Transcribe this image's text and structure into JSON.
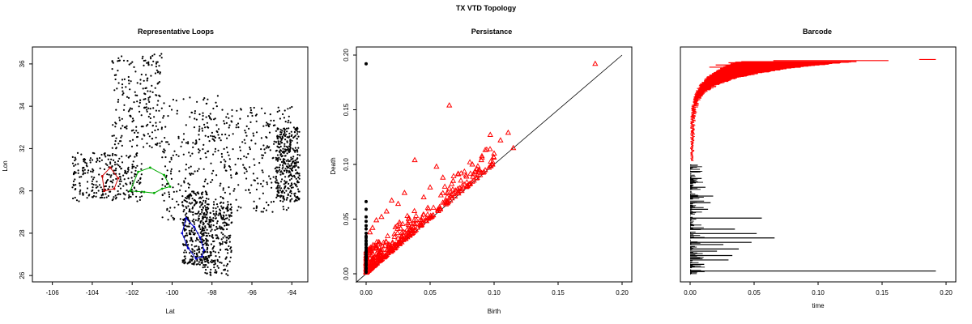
{
  "figure_title": "TX VTD Topology",
  "chart_data": [
    {
      "type": "scatter",
      "title": "Representative Loops",
      "xlabel": "Lat",
      "ylabel": "Lon",
      "xlim": [
        -107,
        -93.2
      ],
      "ylim": [
        25.7,
        36.8
      ],
      "xticks": [
        -106,
        -104,
        -102,
        -100,
        -98,
        -96,
        -94
      ],
      "yticks": [
        26,
        28,
        30,
        32,
        34,
        36
      ],
      "grid": false,
      "series": [
        {
          "role": "vtd-centroids",
          "color": "#000000",
          "regions": [
            {
              "x": [
                -103.0,
                -100.5
              ],
              "y": [
                32.0,
                36.5
              ]
            },
            {
              "x": [
                -100.5,
                -97.5
              ],
              "y": [
                28.5,
                34.5
              ]
            },
            {
              "x": [
                -97.5,
                -94.0
              ],
              "y": [
                29.0,
                34.0
              ]
            },
            {
              "x": [
                -98.5,
                -97.0
              ],
              "y": [
                26.0,
                29.5
              ]
            },
            {
              "x": [
                -105.0,
                -101.5
              ],
              "y": [
                29.5,
                31.8
              ]
            },
            {
              "x": [
                -99.5,
                -98.2
              ],
              "y": [
                26.5,
                30.0
              ]
            },
            {
              "x": [
                -94.8,
                -93.6
              ],
              "y": [
                29.5,
                33.0
              ]
            }
          ]
        },
        {
          "role": "loop",
          "color": "#cc0000",
          "x": [
            -103.4,
            -102.9,
            -102.7,
            -103.1,
            -103.5,
            -103.4
          ],
          "y": [
            30.0,
            30.1,
            30.6,
            31.1,
            30.7,
            30.0
          ]
        },
        {
          "role": "loop",
          "color": "#00aa00",
          "x": [
            -102.1,
            -101.4,
            -100.9,
            -100.5,
            -100.1,
            -100.4,
            -101.1,
            -101.7,
            -102.1
          ],
          "y": [
            30.0,
            29.95,
            29.9,
            30.1,
            30.2,
            30.75,
            31.1,
            30.9,
            30.0
          ]
        },
        {
          "role": "loop",
          "color": "#0000cc",
          "x": [
            -99.3,
            -98.9,
            -98.6,
            -98.4,
            -98.5,
            -98.8,
            -99.2,
            -99.5,
            -99.3
          ],
          "y": [
            28.7,
            28.3,
            27.8,
            27.2,
            26.9,
            26.8,
            27.3,
            28.0,
            28.7
          ]
        }
      ]
    },
    {
      "type": "scatter",
      "title": "Persistance",
      "xlabel": "Birth",
      "ylabel": "Death",
      "xlim": [
        0,
        0.2
      ],
      "ylim": [
        0,
        0.2
      ],
      "xticks": [
        0.0,
        0.05,
        0.1,
        0.15,
        0.2
      ],
      "xtick_labels": [
        "0.00",
        "0.05",
        "0.10",
        "0.15",
        "0.20"
      ],
      "yticks": [
        0.0,
        0.05,
        0.1,
        0.15,
        0.2
      ],
      "ytick_labels": [
        "0.00",
        "0.05",
        "0.10",
        "0.15",
        "0.20"
      ],
      "diagonal": true,
      "series": [
        {
          "role": "dimension-0",
          "marker": "circle",
          "color": "#000000",
          "x": [
            0,
            0,
            0,
            0,
            0,
            0,
            0,
            0,
            0,
            0,
            0,
            0,
            0,
            0,
            0,
            0,
            0,
            0
          ],
          "y": [
            0.192,
            0.066,
            0.059,
            0.052,
            0.048,
            0.044,
            0.041,
            0.037,
            0.034,
            0.03,
            0.027,
            0.024,
            0.02,
            0.016,
            0.012,
            0.008,
            0.005,
            0.002
          ]
        },
        {
          "role": "dimension-1",
          "marker": "triangle",
          "color": "#ff0000",
          "x": [
            0.179,
            0.065,
            0.097,
            0.111,
            0.115,
            0.1,
            0.105,
            0.038,
            0.055,
            0.072,
            0.083,
            0.088,
            0.09,
            0.06,
            0.05,
            0.03,
            0.025,
            0.02,
            0.016,
            0.012,
            0.008,
            0.005,
            0.003,
            0.045,
            0.068,
            0.078
          ],
          "y": [
            0.192,
            0.154,
            0.127,
            0.129,
            0.115,
            0.11,
            0.122,
            0.104,
            0.098,
            0.091,
            0.1,
            0.095,
            0.104,
            0.088,
            0.079,
            0.074,
            0.064,
            0.067,
            0.057,
            0.052,
            0.049,
            0.042,
            0.038,
            0.07,
            0.085,
            0.09
          ]
        }
      ]
    },
    {
      "type": "bar",
      "title": "Barcode",
      "xlabel": "time",
      "ylabel": "",
      "xlim": [
        0,
        0.2
      ],
      "xticks": [
        0.0,
        0.05,
        0.1,
        0.15,
        0.2
      ],
      "xtick_labels": [
        "0.00",
        "0.05",
        "0.10",
        "0.15",
        "0.20"
      ],
      "series": [
        {
          "role": "dimension-0-bars",
          "color": "#000000",
          "bars": [
            {
              "start": 0,
              "end": 0.192,
              "y": 0.02
            },
            {
              "start": 0,
              "end": 0.056,
              "y": 0.26
            },
            {
              "start": 0,
              "end": 0.066,
              "y": 0.17
            },
            {
              "start": 0,
              "end": 0.052,
              "y": 0.19
            },
            {
              "start": 0,
              "end": 0.048,
              "y": 0.15
            },
            {
              "start": 0,
              "end": 0.038,
              "y": 0.12
            },
            {
              "start": 0,
              "end": 0.035,
              "y": 0.21
            },
            {
              "start": 0,
              "end": 0.033,
              "y": 0.09
            },
            {
              "start": 0,
              "end": 0.03,
              "y": 0.07
            },
            {
              "start": 0,
              "end": 0.026,
              "y": 0.14
            },
            {
              "start": 0,
              "end": 0.021,
              "y": 0.11
            },
            {
              "start": 0,
              "end": 0.018,
              "y": 0.36
            },
            {
              "start": 0,
              "end": 0.016,
              "y": 0.33
            },
            {
              "start": 0,
              "end": 0.014,
              "y": 0.3
            },
            {
              "start": 0,
              "end": 0.012,
              "y": 0.4
            },
            {
              "start": 0,
              "end": 0.011,
              "y": 0.05
            },
            {
              "start": 0,
              "end": 0.009,
              "y": 0.44
            },
            {
              "start": 0,
              "end": 0.008,
              "y": 0.47
            },
            {
              "start": 0,
              "end": 0.006,
              "y": 0.5
            }
          ],
          "row_fraction": [
            0.0,
            0.5
          ]
        },
        {
          "role": "dimension-1-bars",
          "color": "#ff0000",
          "bars": [
            {
              "start": 0.179,
              "end": 0.192,
              "y": 0.98
            },
            {
              "start": 0.065,
              "end": 0.155,
              "y": 0.975
            },
            {
              "start": 0.04,
              "end": 0.13,
              "y": 0.97
            },
            {
              "start": 0.03,
              "end": 0.11,
              "y": 0.965
            },
            {
              "start": 0.02,
              "end": 0.09,
              "y": 0.955
            },
            {
              "start": 0.015,
              "end": 0.075,
              "y": 0.945
            }
          ],
          "row_fraction": [
            0.52,
            0.99
          ]
        }
      ]
    }
  ]
}
